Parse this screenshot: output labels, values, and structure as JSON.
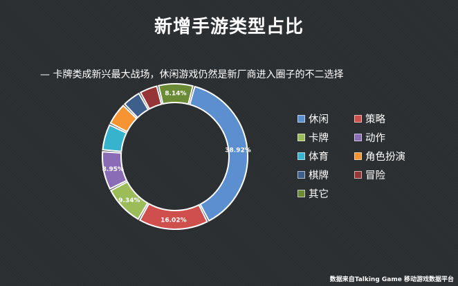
{
  "title": "新增手游类型占比",
  "subtitle": "— 卡牌类成新兴最大战场，休闲游戏仍然是新厂商进入圈子的不二选择",
  "source": "数据来自Talking Game 移动游戏数据平台",
  "chart_data": {
    "type": "pie",
    "donut": true,
    "title": "新增手游类型占比",
    "legend_position": "right",
    "series": [
      {
        "name": "休闲",
        "value": 38.92,
        "label": "38.92%",
        "color": "#5b8fcf"
      },
      {
        "name": "策略",
        "value": 16.02,
        "label": "16.02%",
        "color": "#cf4f4d"
      },
      {
        "name": "卡牌",
        "value": 9.34,
        "label": "9.34%",
        "color": "#9cbc59"
      },
      {
        "name": "动作",
        "value": 8.95,
        "label": "8.95%",
        "color": "#8a6bb5"
      },
      {
        "name": "体育",
        "value": 6.2,
        "label": "",
        "color": "#37b3ce"
      },
      {
        "name": "角色扮演",
        "value": 5.3,
        "label": "",
        "color": "#f69433"
      },
      {
        "name": "棋牌",
        "value": 4.4,
        "label": "",
        "color": "#3c5f8c"
      },
      {
        "name": "冒险",
        "value": 4.3,
        "label": "",
        "color": "#953537"
      },
      {
        "name": "其它",
        "value": 8.14,
        "label": "8.14%",
        "color": "#6b8c35"
      }
    ]
  }
}
